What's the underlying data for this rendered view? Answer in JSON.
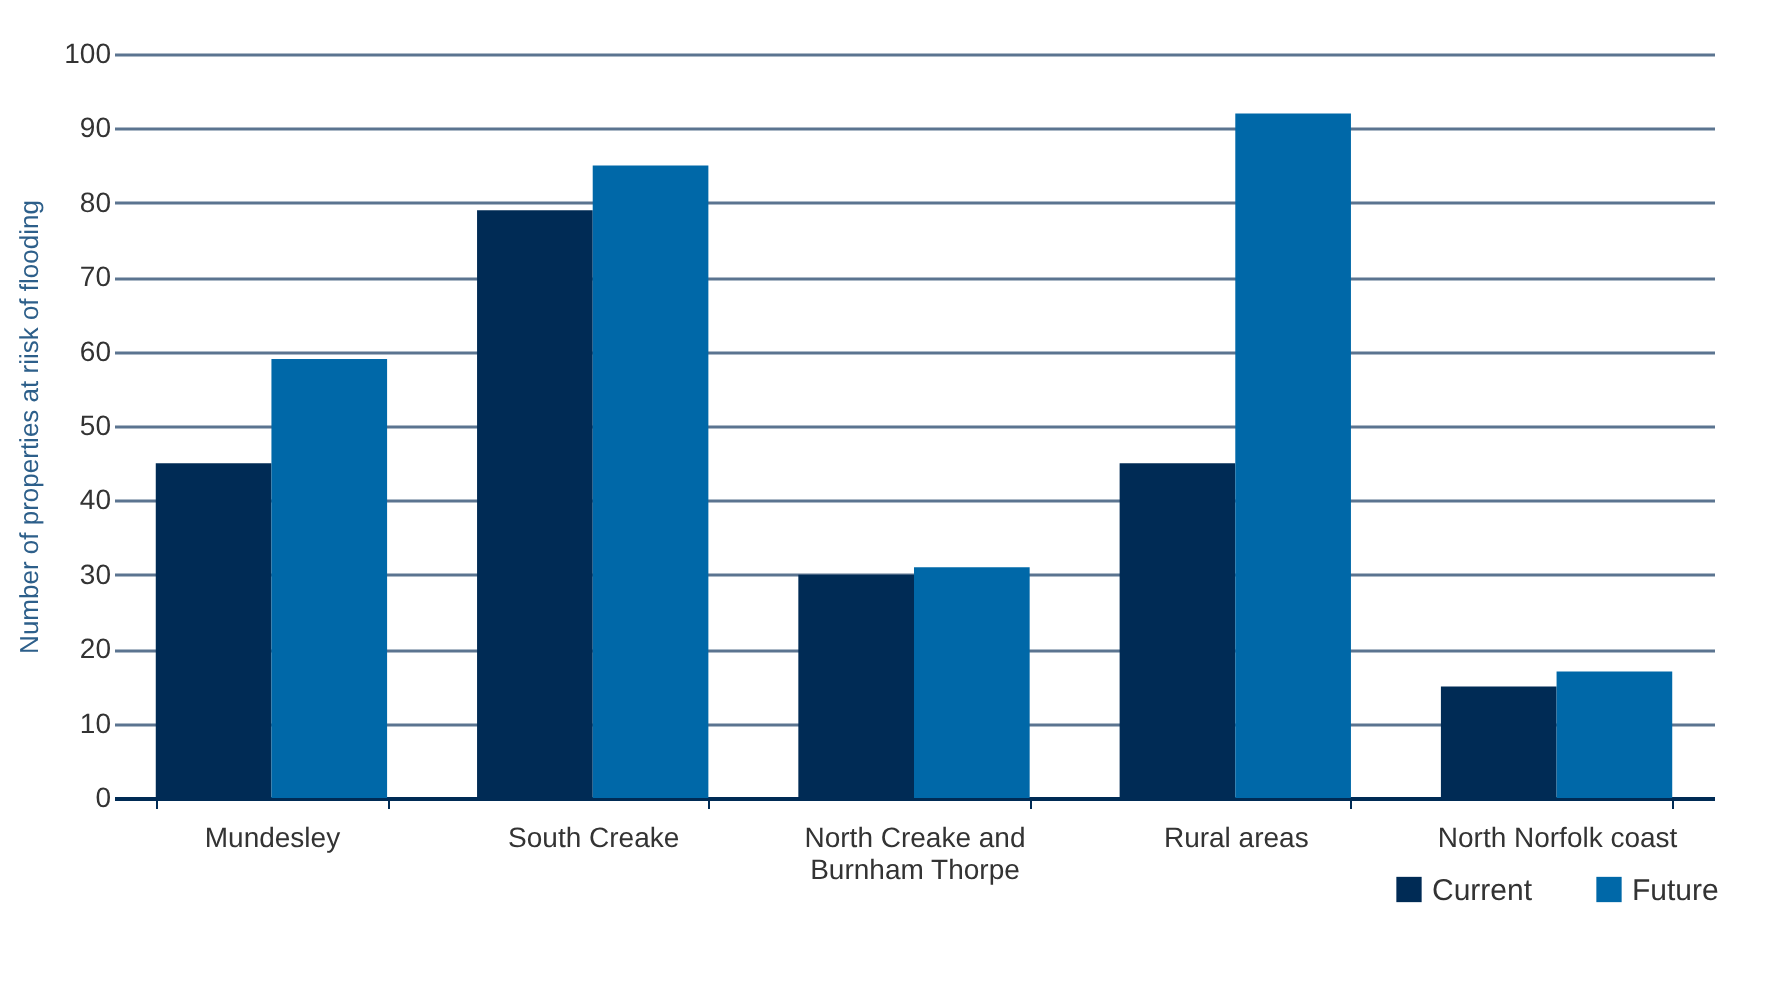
{
  "chart_data": {
    "type": "bar",
    "ylabel": "Number of properties at riisk of flooding",
    "categories": [
      "Mundesley",
      "South Creake",
      "North Creake and Burnham Thorpe",
      "Rural areas",
      "North Norfolk coast"
    ],
    "series": [
      {
        "name": "Current",
        "color": "#002b55",
        "values": [
          45,
          79,
          30,
          45,
          15
        ]
      },
      {
        "name": "Future",
        "color": "#0068a8",
        "values": [
          59,
          85,
          31,
          92,
          17
        ]
      }
    ],
    "ylim": [
      0,
      100
    ],
    "yticks": [
      0,
      10,
      20,
      30,
      40,
      50,
      60,
      70,
      80,
      90,
      100
    ],
    "grid": "y",
    "legend": "bottom right"
  }
}
